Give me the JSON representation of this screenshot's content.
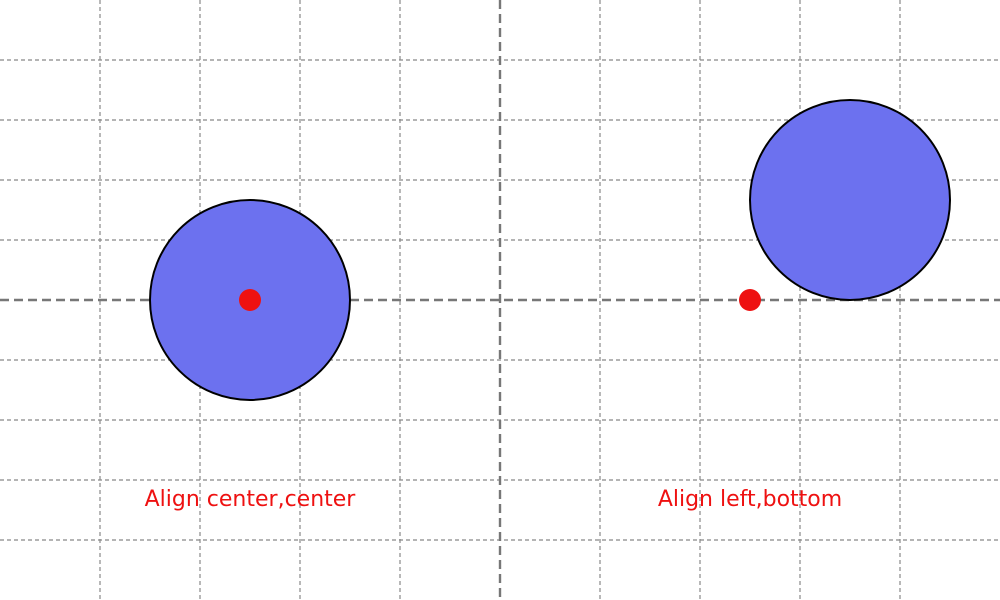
{
  "colors": {
    "background": "#ffffff",
    "grid_line": "#888888",
    "axis_line": "#777777",
    "circle_fill": "#6c71ef",
    "circle_stroke": "#000000",
    "anchor_point": "#ee1111",
    "caption_text": "#ee1111"
  },
  "panels": [
    {
      "name": "left-panel",
      "caption": "Align center,center",
      "align_x": "center",
      "align_y": "center"
    },
    {
      "name": "right-panel",
      "caption": "Align left,bottom",
      "align_x": "left",
      "align_y": "bottom"
    }
  ]
}
